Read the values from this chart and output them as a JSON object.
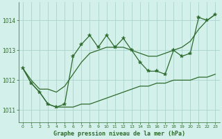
{
  "title": "Graphe pression niveau de la mer (hPa)",
  "bg_color": "#d4f0ea",
  "grid_color": "#aad4cc",
  "line_color": "#2d6a2d",
  "x_values": [
    0,
    1,
    2,
    3,
    4,
    5,
    6,
    7,
    8,
    9,
    10,
    11,
    12,
    13,
    14,
    15,
    16,
    17,
    18,
    19,
    20,
    21,
    22,
    23
  ],
  "series_main": [
    1012.4,
    1011.9,
    1011.6,
    1011.2,
    1011.1,
    1011.2,
    1012.8,
    1013.2,
    1013.5,
    1013.1,
    1013.5,
    1013.1,
    1013.4,
    1013.0,
    1012.6,
    1012.3,
    1012.3,
    1012.2,
    1013.0,
    1012.8,
    1012.9,
    1014.1,
    1014.0,
    1014.2
  ],
  "series_upper": [
    1012.4,
    1012.0,
    1011.7,
    1011.7,
    1011.6,
    1011.8,
    1012.2,
    1012.6,
    1012.9,
    1013.0,
    1013.1,
    1013.1,
    1013.1,
    1013.0,
    1012.9,
    1012.8,
    1012.8,
    1012.9,
    1013.0,
    1013.1,
    1013.3,
    1013.7,
    1014.0,
    1014.2
  ],
  "series_lower": [
    1012.4,
    1011.9,
    1011.6,
    1011.2,
    1011.1,
    1011.1,
    1011.1,
    1011.2,
    1011.2,
    1011.3,
    1011.4,
    1011.5,
    1011.6,
    1011.7,
    1011.8,
    1011.8,
    1011.9,
    1011.9,
    1012.0,
    1012.0,
    1012.0,
    1012.1,
    1012.1,
    1012.2
  ],
  "ylim": [
    1010.6,
    1014.6
  ],
  "yticks": [
    1011,
    1012,
    1013,
    1014
  ],
  "xlim": [
    -0.5,
    23.5
  ],
  "figwidth": 3.2,
  "figheight": 2.0,
  "dpi": 100
}
